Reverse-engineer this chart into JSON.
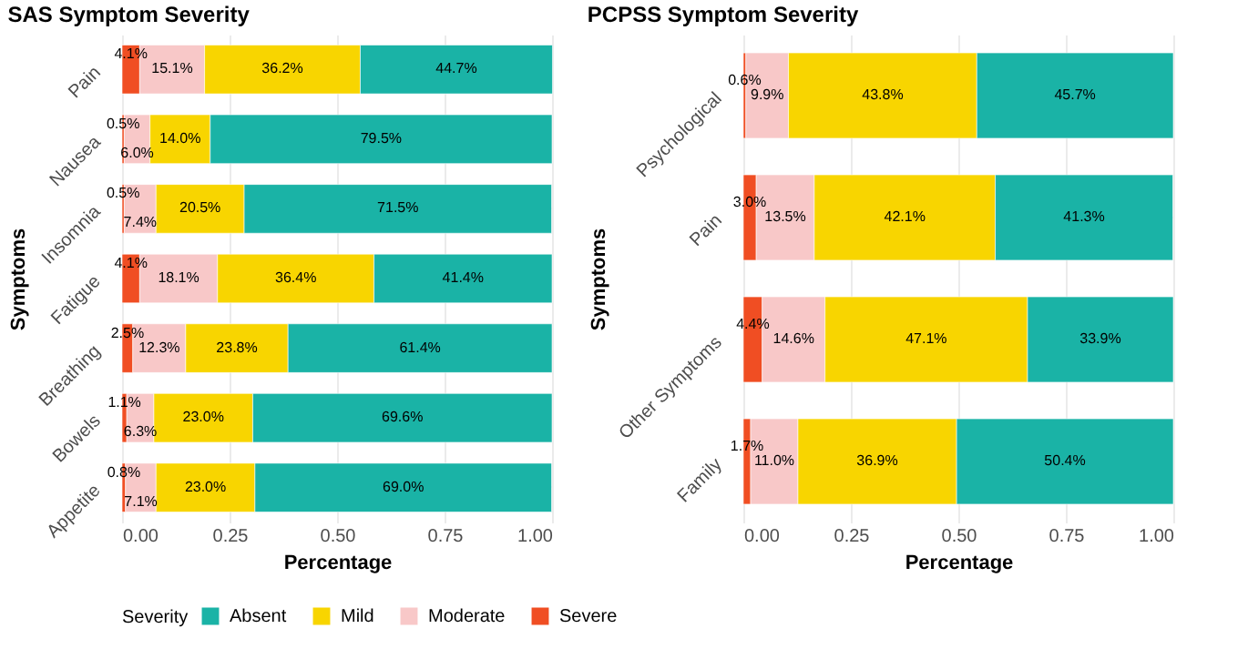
{
  "chart_data": [
    {
      "type": "bar",
      "orientation": "horizontal",
      "stacked": true,
      "title": "SAS Symptom Severity",
      "xlabel": "Percentage",
      "ylabel": "Symptoms",
      "legend_title": "Severity",
      "legend": "bottom",
      "grid": true,
      "categories": [
        "Pain",
        "Nausea",
        "Insomnia",
        "Fatigue",
        "Breathing",
        "Bowels",
        "Appetite"
      ],
      "xlim": [
        0,
        1
      ],
      "xticks": [
        {
          "value": 0,
          "label": "0.00"
        },
        {
          "value": 0.25,
          "label": "0.25"
        },
        {
          "value": 0.5,
          "label": "0.50"
        },
        {
          "value": 0.75,
          "label": "0.75"
        },
        {
          "value": 1,
          "label": "1.00"
        }
      ],
      "series": [
        {
          "name": "Severe",
          "color": "#f04e23",
          "values": [
            0.041,
            0.005,
            0.005,
            0.041,
            0.025,
            0.011,
            0.008
          ],
          "value_labels": [
            "4.1%",
            "0.5%",
            "0.5%",
            "4.1%",
            "2.5%",
            "1.1%",
            "0.8%"
          ]
        },
        {
          "name": "Moderate",
          "color": "#f8c8c8",
          "values": [
            0.151,
            0.06,
            0.074,
            0.181,
            0.123,
            0.063,
            0.071
          ],
          "value_labels": [
            "15.1%",
            "6.0%",
            "7.4%",
            "18.1%",
            "12.3%",
            "6.3%",
            "7.1%"
          ]
        },
        {
          "name": "Mild",
          "color": "#f8d500",
          "values": [
            0.362,
            0.14,
            0.205,
            0.364,
            0.238,
            0.23,
            0.23
          ],
          "value_labels": [
            "36.2%",
            "14.0%",
            "20.5%",
            "36.4%",
            "23.8%",
            "23.0%",
            "23.0%"
          ]
        },
        {
          "name": "Absent",
          "color": "#1ab3a6",
          "values": [
            0.447,
            0.795,
            0.715,
            0.414,
            0.614,
            0.696,
            0.69
          ],
          "value_labels": [
            "44.7%",
            "79.5%",
            "71.5%",
            "41.4%",
            "61.4%",
            "69.6%",
            "69.0%"
          ]
        }
      ]
    },
    {
      "type": "bar",
      "orientation": "horizontal",
      "stacked": true,
      "title": "PCPSS Symptom Severity",
      "xlabel": "Percentage",
      "ylabel": "Symptoms",
      "grid": true,
      "categories": [
        "Psychological",
        "Pain",
        "Other Symptoms",
        "Family"
      ],
      "xlim": [
        0,
        1
      ],
      "xticks": [
        {
          "value": 0,
          "label": "0.00"
        },
        {
          "value": 0.25,
          "label": "0.25"
        },
        {
          "value": 0.5,
          "label": "0.50"
        },
        {
          "value": 0.75,
          "label": "0.75"
        },
        {
          "value": 1,
          "label": "1.00"
        }
      ],
      "series": [
        {
          "name": "Severe",
          "color": "#f04e23",
          "values": [
            0.006,
            0.03,
            0.044,
            0.017
          ],
          "value_labels": [
            "0.6%",
            "3.0%",
            "4.4%",
            "1.7%"
          ]
        },
        {
          "name": "Moderate",
          "color": "#f8c8c8",
          "values": [
            0.099,
            0.135,
            0.146,
            0.11
          ],
          "value_labels": [
            "9.9%",
            "13.5%",
            "14.6%",
            "11.0%"
          ]
        },
        {
          "name": "Mild",
          "color": "#f8d500",
          "values": [
            0.438,
            0.421,
            0.471,
            0.369
          ],
          "value_labels": [
            "43.8%",
            "42.1%",
            "47.1%",
            "36.9%"
          ]
        },
        {
          "name": "Absent",
          "color": "#1ab3a6",
          "values": [
            0.457,
            0.413,
            0.339,
            0.504
          ],
          "value_labels": [
            "45.7%",
            "41.3%",
            "33.9%",
            "50.4%"
          ]
        }
      ]
    }
  ]
}
